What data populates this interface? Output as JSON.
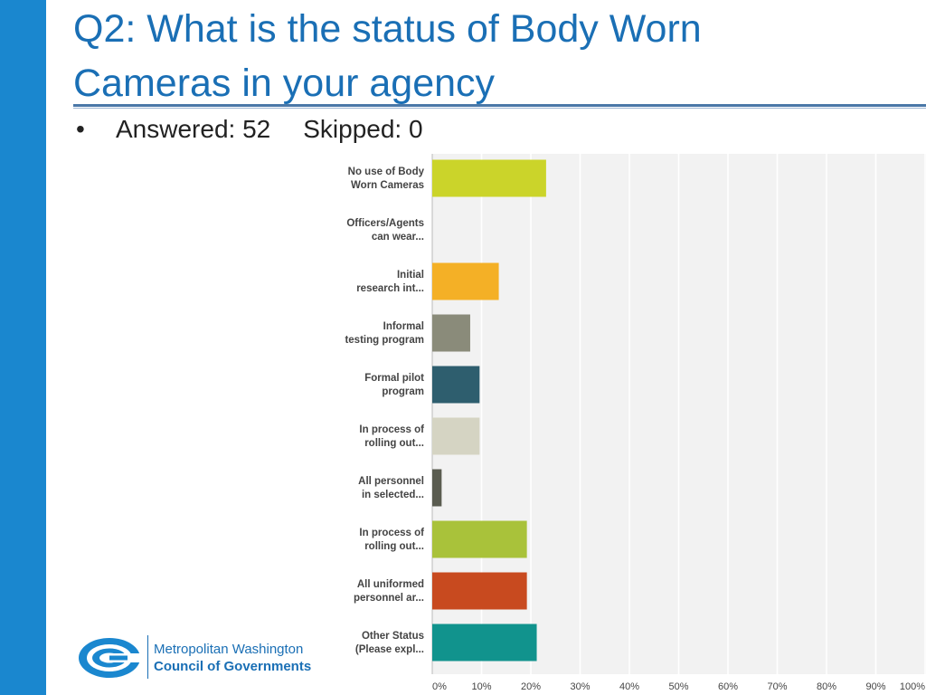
{
  "slide": {
    "title_line1": "Q2: What is the status of Body Worn",
    "title_line2": "Cameras in your agency",
    "bullet": "•",
    "answered": "Answered: 52",
    "skipped": "Skipped: 0"
  },
  "logo": {
    "line1": "Metropolitan Washington",
    "line2": "Council of Governments"
  },
  "colors": {
    "accent_bar": "#1a87cf",
    "title": "#1a6fb5",
    "plot_bg": "#f2f2f2",
    "grid": "#ffffff"
  },
  "chart_data": {
    "type": "bar",
    "orientation": "horizontal",
    "categories": [
      [
        "No use of Body",
        "Worn Cameras"
      ],
      [
        "Officers/Agents",
        "can wear..."
      ],
      [
        "Initial",
        "research int..."
      ],
      [
        "Informal",
        "testing program"
      ],
      [
        "Formal pilot",
        "program"
      ],
      [
        "In process of",
        "rolling out..."
      ],
      [
        "All personnel",
        "in selected..."
      ],
      [
        "In process of",
        "rolling out..."
      ],
      [
        "All uniformed",
        "personnel ar..."
      ],
      [
        "Other Status",
        "(Please expl..."
      ]
    ],
    "values": [
      23.1,
      0,
      13.5,
      7.7,
      9.6,
      9.6,
      1.9,
      19.2,
      19.2,
      21.2
    ],
    "colors": [
      "#cbd42a",
      "#cccccc",
      "#f4b026",
      "#8a8b7a",
      "#2e5e6e",
      "#d5d4c3",
      "#5a5c50",
      "#a9c23a",
      "#c84a1f",
      "#11938d"
    ],
    "xlim": [
      0,
      100
    ],
    "xticks": [
      "0%",
      "10%",
      "20%",
      "30%",
      "40%",
      "50%",
      "60%",
      "70%",
      "80%",
      "90%",
      "100%"
    ],
    "grid": true,
    "legend": "none",
    "title": "",
    "xlabel": "",
    "ylabel": ""
  }
}
